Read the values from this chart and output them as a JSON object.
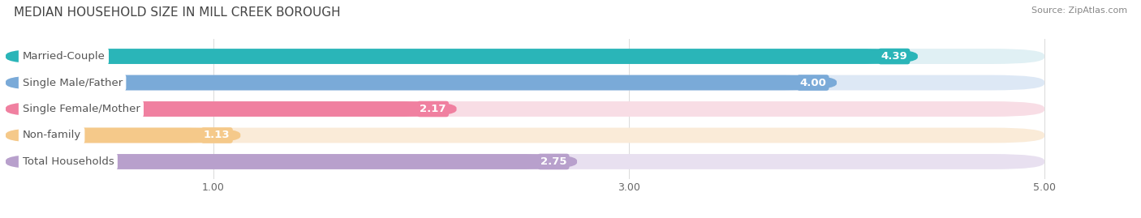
{
  "title": "MEDIAN HOUSEHOLD SIZE IN MILL CREEK BOROUGH",
  "source": "Source: ZipAtlas.com",
  "categories": [
    "Married-Couple",
    "Single Male/Father",
    "Single Female/Mother",
    "Non-family",
    "Total Households"
  ],
  "values": [
    4.39,
    4.0,
    2.17,
    1.13,
    2.75
  ],
  "bar_colors": [
    "#2ab5b8",
    "#7aaad8",
    "#f080a0",
    "#f5c98a",
    "#b8a0cc"
  ],
  "bar_bg_colors": [
    "#e0f0f4",
    "#dde8f5",
    "#f8dde5",
    "#faebd8",
    "#e8e0f0"
  ],
  "xlim": [
    0,
    5.3
  ],
  "xmin": 0,
  "xmax": 5.0,
  "xticks": [
    1.0,
    3.0,
    5.0
  ],
  "label_text_color": "#555555",
  "label_fontsize": 9.5,
  "value_fontsize": 9.5,
  "title_fontsize": 11,
  "background_color": "#ffffff"
}
